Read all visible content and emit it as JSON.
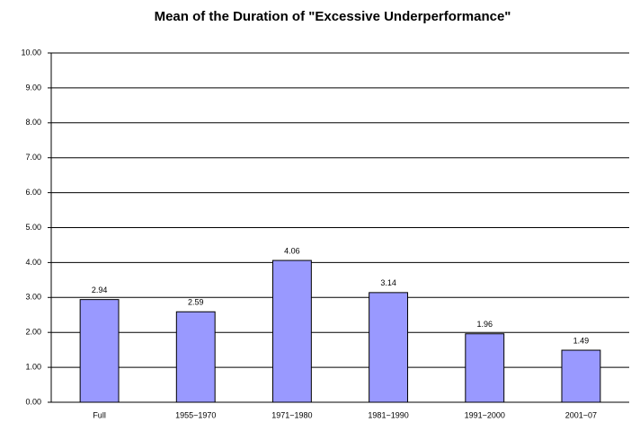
{
  "chart_data": {
    "type": "bar",
    "title": "Mean of the Duration of \"Excessive Underperformance\"",
    "categories": [
      "Full",
      "1955−1970",
      "1971−1980",
      "1981−1990",
      "1991−2000",
      "2001−07"
    ],
    "values": [
      2.94,
      2.59,
      4.06,
      3.14,
      1.96,
      1.49
    ],
    "color": "#9999ff",
    "ylim": [
      0,
      10
    ],
    "yticks": [
      {
        "value": 0,
        "label": "0.00"
      },
      {
        "value": 1,
        "label": "1.00"
      },
      {
        "value": 2,
        "label": "2.00"
      },
      {
        "value": 3,
        "label": "3.00"
      },
      {
        "value": 4,
        "label": "4.00"
      },
      {
        "value": 5,
        "label": "5.00"
      },
      {
        "value": 6,
        "label": "6.00"
      },
      {
        "value": 7,
        "label": "7.00"
      },
      {
        "value": 8,
        "label": "8.00"
      },
      {
        "value": 9,
        "label": "9.00"
      },
      {
        "value": 10,
        "label": "10.00"
      }
    ],
    "grid": true
  }
}
